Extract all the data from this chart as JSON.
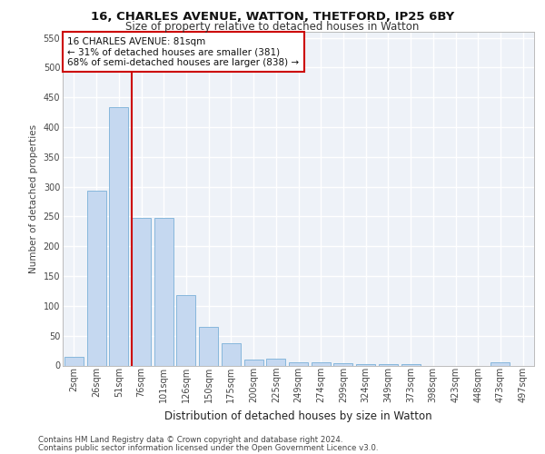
{
  "title1": "16, CHARLES AVENUE, WATTON, THETFORD, IP25 6BY",
  "title2": "Size of property relative to detached houses in Watton",
  "xlabel": "Distribution of detached houses by size in Watton",
  "ylabel": "Number of detached properties",
  "footer1": "Contains HM Land Registry data © Crown copyright and database right 2024.",
  "footer2": "Contains public sector information licensed under the Open Government Licence v3.0.",
  "bar_labels": [
    "2sqm",
    "26sqm",
    "51sqm",
    "76sqm",
    "101sqm",
    "126sqm",
    "150sqm",
    "175sqm",
    "200sqm",
    "225sqm",
    "249sqm",
    "274sqm",
    "299sqm",
    "324sqm",
    "349sqm",
    "373sqm",
    "398sqm",
    "423sqm",
    "448sqm",
    "473sqm",
    "497sqm"
  ],
  "bar_values": [
    15,
    293,
    433,
    247,
    247,
    118,
    65,
    37,
    10,
    12,
    6,
    5,
    4,
    3,
    3,
    3,
    0,
    0,
    0,
    5,
    0
  ],
  "bar_color": "#c5d8f0",
  "bar_edge_color": "#7ab0d8",
  "annotation_text": "16 CHARLES AVENUE: 81sqm\n← 31% of detached houses are smaller (381)\n68% of semi-detached houses are larger (838) →",
  "annotation_box_color": "#ffffff",
  "annotation_box_edge": "#cc0000",
  "vline_color": "#cc0000",
  "ylim": [
    0,
    560
  ],
  "yticks": [
    0,
    50,
    100,
    150,
    200,
    250,
    300,
    350,
    400,
    450,
    500,
    550
  ],
  "bg_color": "#eef2f8",
  "grid_color": "#ffffff",
  "title1_fontsize": 9.5,
  "title2_fontsize": 8.5,
  "ylabel_fontsize": 7.5,
  "xlabel_fontsize": 8.5,
  "tick_fontsize": 7,
  "footer_fontsize": 6.2,
  "annot_fontsize": 7.5
}
